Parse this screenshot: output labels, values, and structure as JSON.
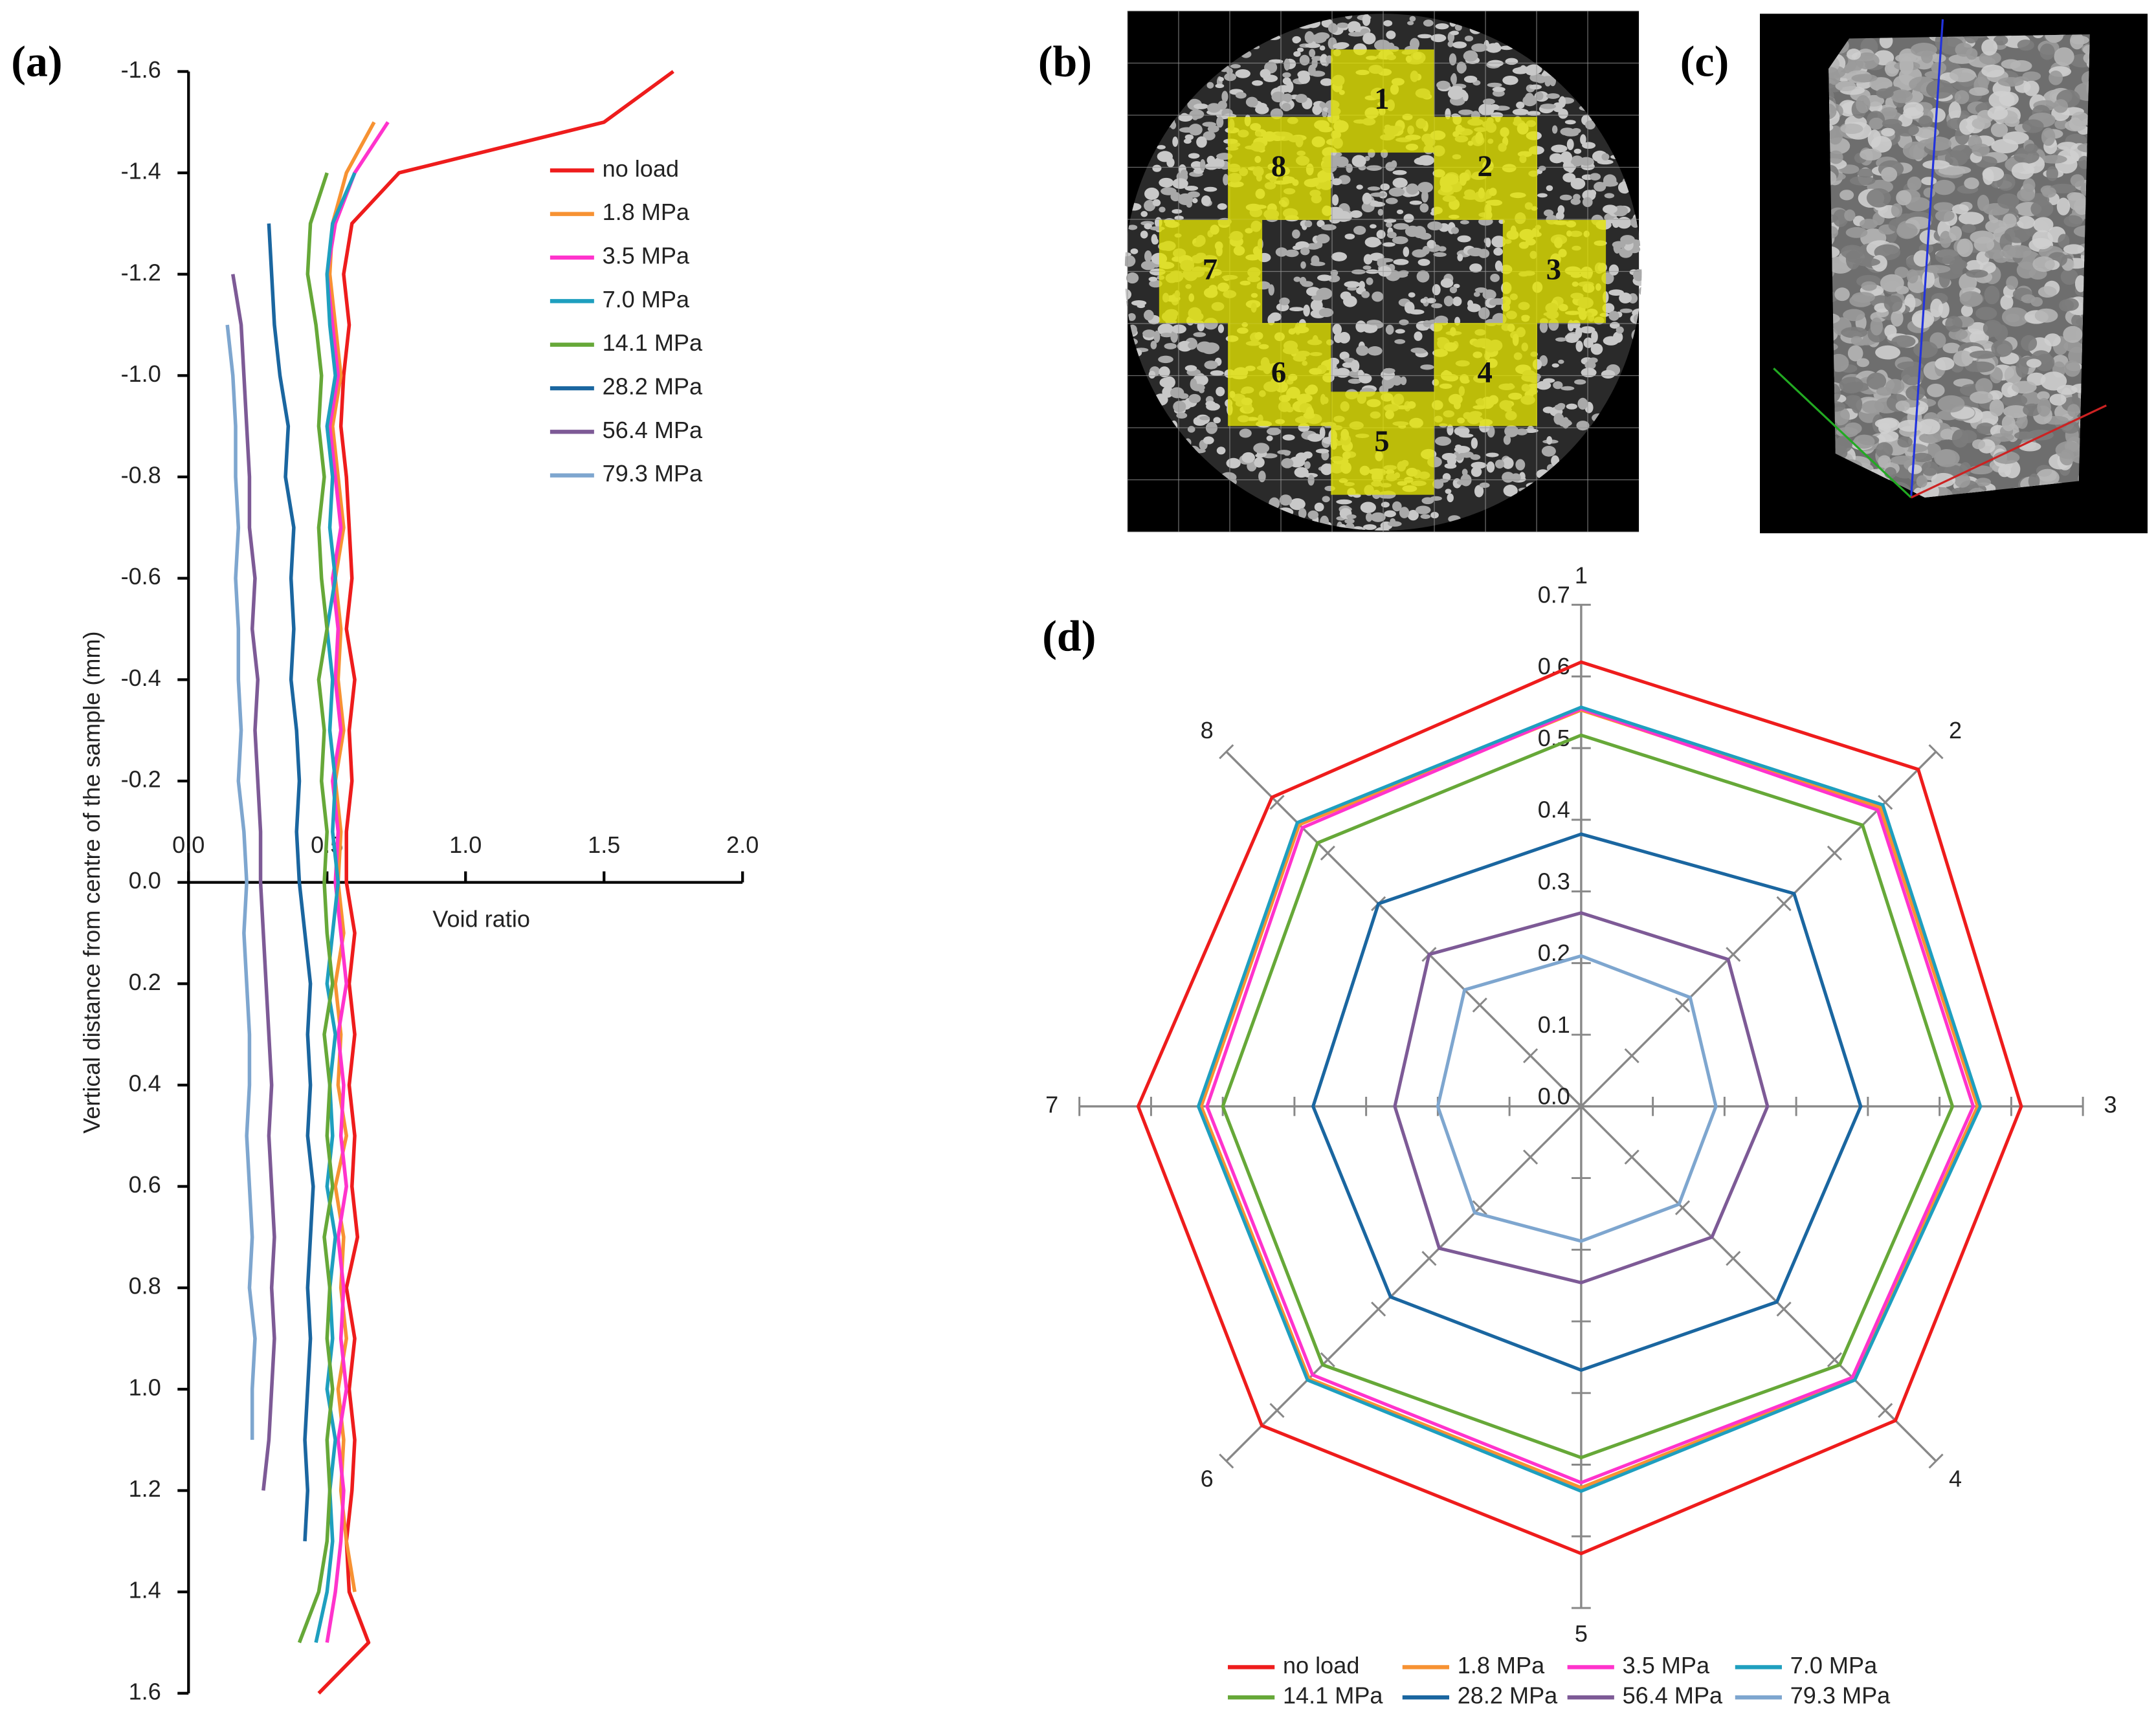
{
  "chart_data": [
    {
      "type": "profile",
      "label": "(a)",
      "y_title": "Vertical distance from centre of the sample (mm)",
      "x_title": "Void ratio",
      "y_inverted": true,
      "y": [
        -1.6,
        -1.5,
        -1.4,
        -1.3,
        -1.2,
        -1.1,
        -1,
        -0.9,
        -0.8,
        -0.7,
        -0.6,
        -0.5,
        -0.4,
        -0.3,
        -0.2,
        -0.1,
        0,
        0.1,
        0.2,
        0.3,
        0.4,
        0.5,
        0.6,
        0.7,
        0.8,
        0.9,
        1,
        1.1,
        1.2,
        1.3,
        1.4,
        1.5,
        1.6
      ],
      "xlim": [
        0,
        2
      ],
      "xticks": [
        {
          "value": 0,
          "label": "0.0"
        },
        0.5,
        {
          "value": 1,
          "label": "1.0"
        },
        1.5,
        {
          "value": 2,
          "label": "2.0"
        }
      ],
      "ylim": [
        -1.6,
        1.6
      ],
      "yticks": [
        -1.6,
        -1.4,
        -1.2,
        {
          "value": -1,
          "label": "-1.0"
        },
        -0.8,
        -0.6,
        -0.4,
        -0.2,
        {
          "value": 0,
          "label": "0.0"
        },
        0.2,
        0.4,
        0.6,
        0.8,
        {
          "value": 1,
          "label": "1.0"
        },
        1.2,
        1.4,
        1.6
      ],
      "series": [
        {
          "name": "no load",
          "color": "#ee1c1c",
          "values": [
            1.75,
            1.5,
            0.76,
            0.59,
            0.56,
            0.58,
            0.56,
            0.55,
            0.57,
            0.58,
            0.59,
            0.57,
            0.6,
            0.58,
            0.59,
            0.57,
            0.57,
            0.6,
            0.58,
            0.6,
            0.58,
            0.6,
            0.59,
            0.61,
            0.57,
            0.6,
            0.58,
            0.6,
            0.59,
            0.57,
            0.58,
            0.65,
            0.47
          ]
        },
        {
          "name": "1.8 MPa",
          "color": "#f79232",
          "values": [
            null,
            0.67,
            0.57,
            0.52,
            0.51,
            0.53,
            0.55,
            0.52,
            0.54,
            0.56,
            0.53,
            0.55,
            0.54,
            0.56,
            0.53,
            0.55,
            0.54,
            0.56,
            0.53,
            0.55,
            0.54,
            0.57,
            0.53,
            0.56,
            0.55,
            0.57,
            0.54,
            0.56,
            0.55,
            0.57,
            0.6,
            null,
            null
          ]
        },
        {
          "name": "3.5 MPa",
          "color": "#ff33cc",
          "values": [
            null,
            0.72,
            0.6,
            0.53,
            0.5,
            0.52,
            0.54,
            0.51,
            0.53,
            0.55,
            0.52,
            0.54,
            0.53,
            0.55,
            0.52,
            0.54,
            0.53,
            0.55,
            0.57,
            0.54,
            0.56,
            0.55,
            0.57,
            0.54,
            0.56,
            0.55,
            0.57,
            0.54,
            0.56,
            0.55,
            0.53,
            0.5,
            null
          ]
        },
        {
          "name": "7.0 MPa",
          "color": "#1e9fbf",
          "values": [
            null,
            null,
            0.6,
            0.52,
            0.5,
            0.51,
            0.53,
            0.5,
            0.52,
            0.51,
            0.53,
            0.5,
            0.52,
            0.51,
            0.53,
            0.52,
            0.54,
            0.52,
            0.5,
            0.53,
            0.51,
            0.52,
            0.5,
            0.53,
            0.51,
            0.52,
            0.5,
            0.53,
            0.51,
            0.52,
            0.5,
            0.46,
            null
          ]
        },
        {
          "name": "14.1 MPa",
          "color": "#66a838",
          "values": [
            null,
            null,
            0.5,
            0.44,
            0.43,
            0.46,
            0.48,
            0.47,
            0.49,
            0.47,
            0.48,
            0.5,
            0.47,
            0.49,
            0.48,
            0.5,
            0.49,
            0.5,
            0.52,
            0.49,
            0.51,
            0.5,
            0.52,
            0.49,
            0.51,
            0.5,
            0.52,
            0.5,
            0.51,
            0.5,
            0.47,
            0.4,
            null
          ]
        },
        {
          "name": "28.2 MPa",
          "color": "#1a66a0",
          "values": [
            null,
            null,
            null,
            0.29,
            0.3,
            0.31,
            0.33,
            0.36,
            0.35,
            0.38,
            0.37,
            0.38,
            0.37,
            0.39,
            0.4,
            0.39,
            0.4,
            0.42,
            0.44,
            0.43,
            0.44,
            0.43,
            0.45,
            0.44,
            0.43,
            0.44,
            0.43,
            0.42,
            0.43,
            0.42,
            null,
            null,
            null
          ]
        },
        {
          "name": "56.4 MPa",
          "color": "#7d5a96",
          "values": [
            null,
            null,
            null,
            null,
            0.16,
            0.19,
            0.2,
            0.21,
            0.22,
            0.22,
            0.24,
            0.23,
            0.25,
            0.24,
            0.25,
            0.26,
            0.26,
            0.27,
            0.28,
            0.29,
            0.3,
            0.29,
            0.3,
            0.31,
            0.3,
            0.31,
            0.3,
            0.29,
            0.27,
            null,
            null,
            null,
            null
          ]
        },
        {
          "name": "79.3 MPa",
          "color": "#7ea6cf",
          "values": [
            null,
            null,
            null,
            null,
            null,
            0.14,
            0.16,
            0.17,
            0.17,
            0.18,
            0.17,
            0.18,
            0.18,
            0.19,
            0.18,
            0.2,
            0.21,
            0.2,
            0.21,
            0.22,
            0.22,
            0.21,
            0.22,
            0.23,
            0.22,
            0.24,
            0.23,
            0.23,
            null,
            null,
            null,
            null,
            null
          ]
        }
      ]
    },
    {
      "type": "radar",
      "label": "(d)",
      "axes": [
        "1",
        "2",
        "3",
        "4",
        "5",
        "6",
        "7",
        "8"
      ],
      "rlim": [
        0,
        0.7
      ],
      "rticks": [
        {
          "value": 0,
          "label": "0.0"
        },
        0.1,
        0.2,
        0.3,
        0.4,
        0.5,
        0.6,
        0.7
      ],
      "series": [
        {
          "name": "no load",
          "color": "#ee1c1c",
          "values": [
            0.62,
            0.665,
            0.614,
            0.62,
            0.624,
            0.63,
            0.618,
            0.61
          ]
        },
        {
          "name": "1.8 MPa",
          "color": "#f79232",
          "values": [
            0.553,
            0.59,
            0.553,
            0.538,
            0.532,
            0.537,
            0.53,
            0.556
          ]
        },
        {
          "name": "3.5 MPa",
          "color": "#ff33cc",
          "values": [
            0.555,
            0.585,
            0.547,
            0.535,
            0.525,
            0.53,
            0.522,
            0.55
          ]
        },
        {
          "name": "7.0 MPa",
          "color": "#1e9fbf",
          "values": [
            0.557,
            0.595,
            0.557,
            0.54,
            0.537,
            0.54,
            0.534,
            0.56
          ]
        },
        {
          "name": "14.1 MPa",
          "color": "#66a838",
          "values": [
            0.518,
            0.555,
            0.518,
            0.51,
            0.49,
            0.51,
            0.5,
            0.52
          ]
        },
        {
          "name": "28.2 MPa",
          "color": "#1a66a0",
          "values": [
            0.38,
            0.42,
            0.39,
            0.386,
            0.368,
            0.376,
            0.374,
            0.4
          ]
        },
        {
          "name": "56.4 MPa",
          "color": "#7d5a96",
          "values": [
            0.27,
            0.29,
            0.26,
            0.258,
            0.246,
            0.28,
            0.26,
            0.3
          ]
        },
        {
          "name": "79.3 MPa",
          "color": "#7ea6cf",
          "values": [
            0.21,
            0.215,
            0.188,
            0.193,
            0.188,
            0.21,
            0.2,
            0.23
          ]
        }
      ]
    }
  ],
  "panel_b": {
    "label": "(b)",
    "regions": [
      "1",
      "2",
      "3",
      "4",
      "5",
      "6",
      "7",
      "8"
    ]
  },
  "panel_c": {
    "label": "(c)"
  }
}
